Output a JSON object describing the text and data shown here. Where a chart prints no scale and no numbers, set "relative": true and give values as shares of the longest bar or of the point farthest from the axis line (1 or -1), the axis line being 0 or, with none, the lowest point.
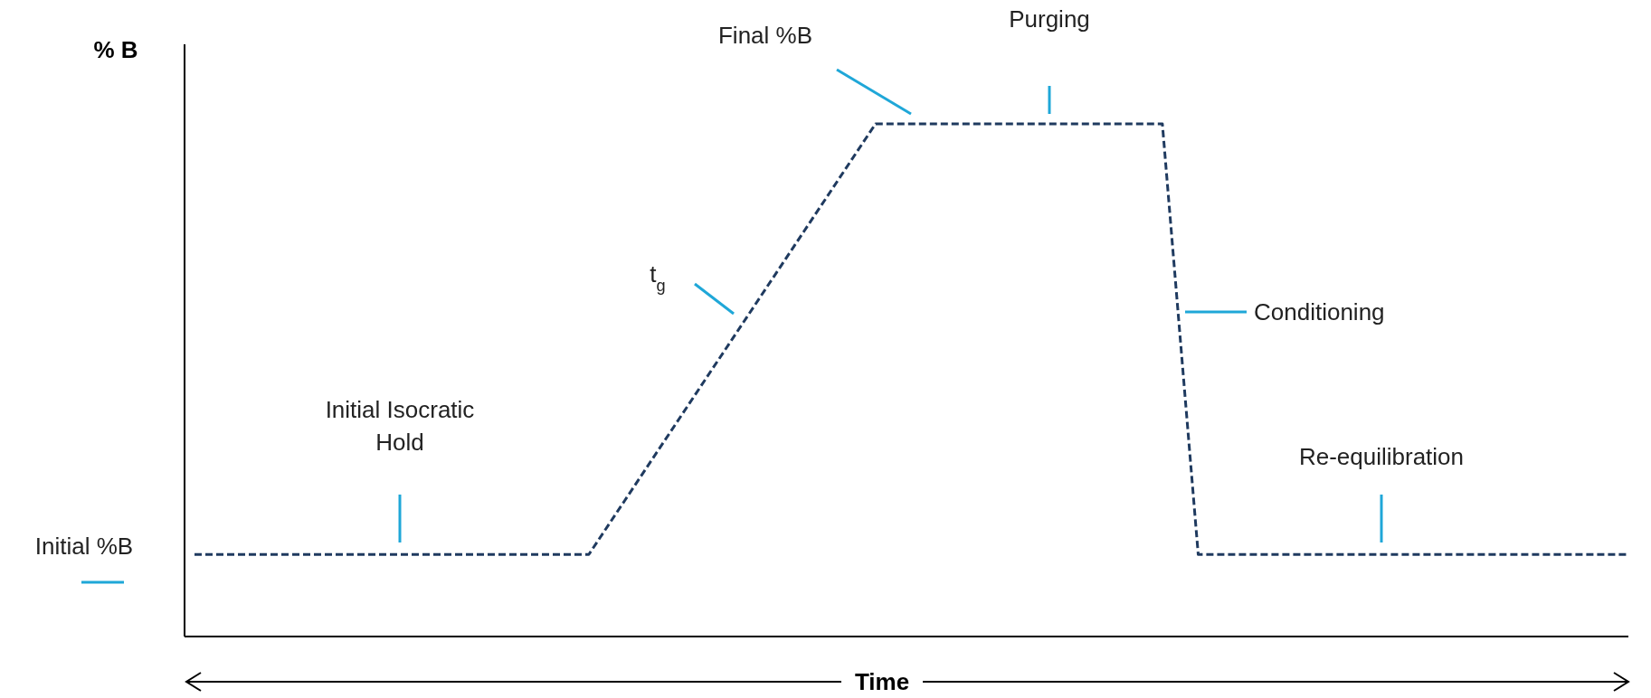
{
  "chart_data": {
    "type": "line",
    "relative": true,
    "xlabel": "Time",
    "ylabel": "% B",
    "categories": [
      null,
      null,
      null,
      null,
      null,
      null,
      null,
      null,
      null,
      null,
      null,
      null,
      null,
      null,
      null,
      null,
      null,
      null,
      null,
      null,
      null,
      null,
      null,
      null,
      null,
      null,
      null,
      null,
      null,
      null,
      null,
      null,
      null,
      null,
      null,
      null,
      null,
      null,
      null,
      null,
      null
    ],
    "series": [
      {
        "color": "#1f3a5f",
        "values": [
          0.16,
          0.16,
          0.16,
          0.16,
          0.16,
          0.16,
          0.16,
          0.16,
          0.16,
          0.16,
          0.16,
          0.16,
          0.265,
          0.37,
          0.475,
          0.58,
          0.685,
          0.79,
          0.895,
          1,
          1,
          1,
          1,
          1,
          1,
          1,
          1,
          1,
          0.16,
          0.16,
          0.16,
          0.16,
          0.16,
          0.16,
          0.16,
          0.16,
          0.16,
          0.16,
          0.16,
          0.16,
          0.16
        ]
      }
    ],
    "line_style": "dashed",
    "marker": "none",
    "annotations": [
      "Initial %B",
      "Initial Isocratic\nHold",
      "t$_{g}$",
      "Final %B",
      "Purging",
      "Conditioning",
      "Re-equilibration"
    ]
  }
}
